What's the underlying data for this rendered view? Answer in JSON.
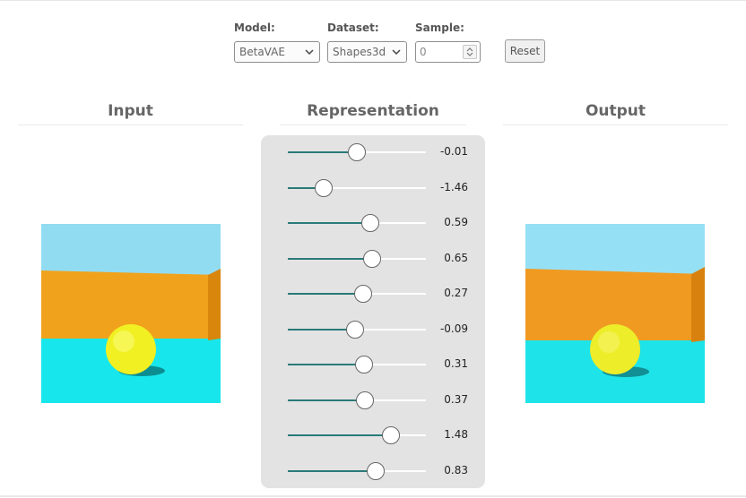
{
  "controls": {
    "model": {
      "label": "Model:",
      "value": "BetaVAE"
    },
    "dataset": {
      "label": "Dataset:",
      "value": "Shapes3d"
    },
    "sample": {
      "label": "Sample:",
      "value": "0"
    },
    "reset_label": "Reset"
  },
  "panels": {
    "input_title": "Input",
    "representation_title": "Representation",
    "output_title": "Output"
  },
  "representation": {
    "min": -3,
    "max": 3,
    "latents": [
      {
        "label": "-0.01",
        "value": -0.01
      },
      {
        "label": "-1.46",
        "value": -1.46
      },
      {
        "label": "0.59",
        "value": 0.59
      },
      {
        "label": "0.65",
        "value": 0.65
      },
      {
        "label": "0.27",
        "value": 0.27
      },
      {
        "label": "-0.09",
        "value": -0.09
      },
      {
        "label": "0.31",
        "value": 0.31
      },
      {
        "label": "0.37",
        "value": 0.37
      },
      {
        "label": "1.48",
        "value": 1.48
      },
      {
        "label": "0.83",
        "value": 0.83
      }
    ]
  },
  "colors": {
    "slider_accent": "#2a7a78",
    "sky": "#92dcf2",
    "wall": "#f0a21c",
    "floor": "#17e7ec",
    "ball": "#f1f023"
  }
}
